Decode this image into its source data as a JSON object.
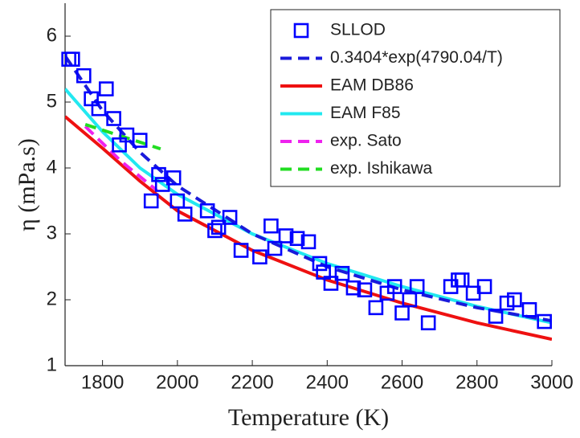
{
  "chart_data": {
    "type": "line",
    "xlabel": "Temperature (K)",
    "ylabel": "η (mPa.s)",
    "xlim": [
      1700,
      3000
    ],
    "xticks": [
      1800,
      2000,
      2200,
      2400,
      2600,
      2800,
      3000
    ],
    "ylim": [
      1,
      6.5
    ],
    "yticks": [
      1,
      2,
      3,
      4,
      5,
      6
    ],
    "legend": "upper right",
    "series": [
      {
        "name": "SLLOD",
        "style": "markers",
        "color": "#0000ff",
        "x": [
          1710,
          1720,
          1750,
          1770,
          1790,
          1810,
          1830,
          1845,
          1865,
          1900,
          1930,
          1950,
          1960,
          1990,
          2000,
          2020,
          2080,
          2100,
          2110,
          2140,
          2170,
          2220,
          2250,
          2260,
          2290,
          2320,
          2350,
          2380,
          2390,
          2410,
          2440,
          2470,
          2500,
          2530,
          2560,
          2580,
          2600,
          2620,
          2640,
          2670,
          2730,
          2750,
          2760,
          2790,
          2820,
          2850,
          2880,
          2900,
          2940,
          2980
        ],
        "values": [
          5.65,
          5.65,
          5.4,
          5.05,
          4.9,
          5.2,
          4.75,
          4.35,
          4.5,
          4.42,
          3.5,
          3.9,
          3.75,
          3.85,
          3.5,
          3.3,
          3.35,
          3.05,
          3.1,
          3.25,
          2.75,
          2.65,
          3.12,
          2.78,
          2.97,
          2.93,
          2.88,
          2.55,
          2.42,
          2.25,
          2.4,
          2.18,
          2.15,
          1.88,
          2.1,
          2.2,
          1.8,
          2.0,
          2.2,
          1.65,
          2.2,
          2.3,
          2.3,
          2.1,
          2.2,
          1.75,
          1.95,
          2.0,
          1.85,
          1.67
        ]
      },
      {
        "name": "0.3404*exp(4790.04/T)",
        "style": "dashed",
        "color": "#1a1adb",
        "x": [
          1700,
          1800,
          1900,
          2000,
          2200,
          2400,
          2600,
          2800,
          3000
        ],
        "values": [
          5.7,
          4.87,
          4.24,
          3.73,
          3.0,
          2.5,
          2.15,
          1.88,
          1.68
        ]
      },
      {
        "name": "EAM DB86",
        "style": "solid",
        "color": "#ee1111",
        "x": [
          1700,
          1800,
          1900,
          2000,
          2200,
          2400,
          2600,
          2800,
          3000
        ],
        "values": [
          4.78,
          4.3,
          3.8,
          3.35,
          2.75,
          2.3,
          1.95,
          1.65,
          1.4
        ]
      },
      {
        "name": "EAM F85",
        "style": "solid",
        "color": "#22e8f0",
        "x": [
          1700,
          1800,
          1900,
          2000,
          2200,
          2400,
          2600,
          2800,
          3000
        ],
        "values": [
          5.2,
          4.55,
          4.0,
          3.6,
          3.0,
          2.55,
          2.2,
          1.9,
          1.65
        ]
      },
      {
        "name": "exp. Sato",
        "style": "dashed",
        "color": "#ee22ee",
        "x": [
          1754,
          1850,
          1945
        ],
        "values": [
          4.63,
          4.1,
          3.66
        ]
      },
      {
        "name": "exp. Ishikawa",
        "style": "dashed",
        "color": "#22dd22",
        "x": [
          1754,
          1955
        ],
        "values": [
          4.66,
          4.29
        ]
      }
    ]
  }
}
